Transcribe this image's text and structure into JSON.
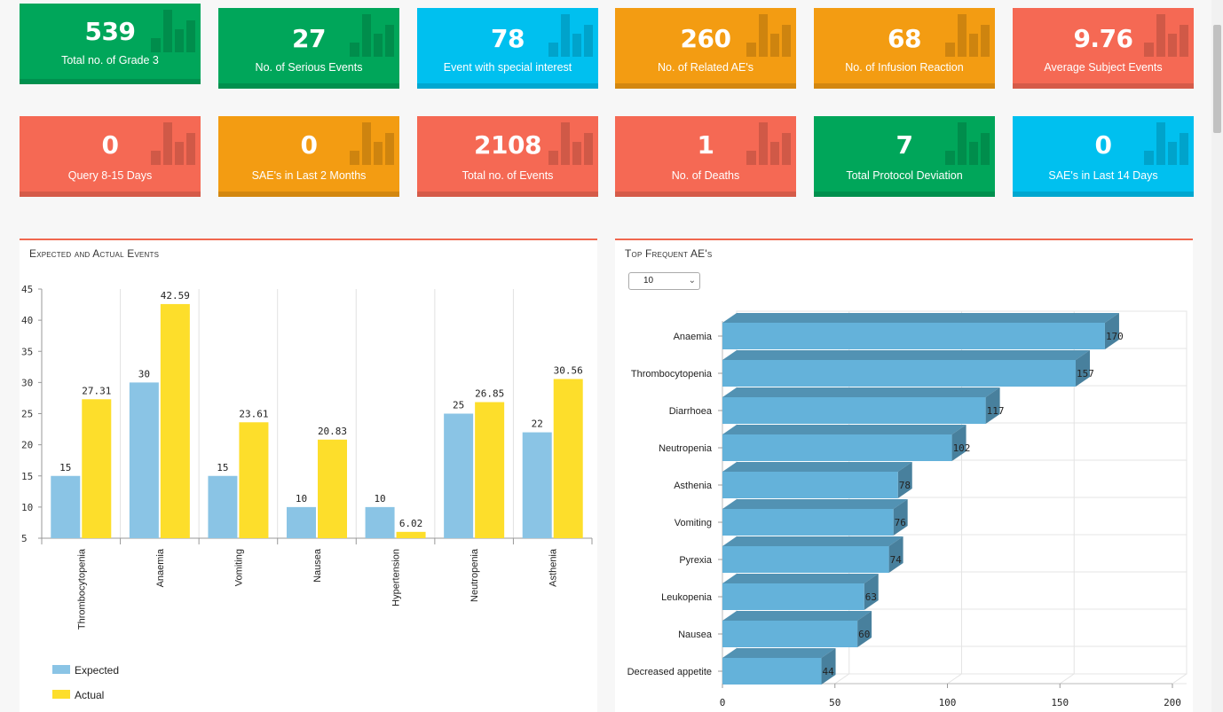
{
  "colors": {
    "green": "#00a65a",
    "blue": "#00c0ef",
    "orange": "#f39c12",
    "red": "#f56954",
    "expected": "#8ac4e5",
    "actual": "#fdde2b",
    "hbar": "#64b2da"
  },
  "tiles_row1": [
    {
      "value": "539",
      "label": "Total no. of Grade 3",
      "color": "green"
    },
    {
      "value": "27",
      "label": "No. of Serious Events",
      "color": "green"
    },
    {
      "value": "78",
      "label": "Event with special interest",
      "color": "blue"
    },
    {
      "value": "260",
      "label": "No. of Related AE's",
      "color": "orange"
    },
    {
      "value": "68",
      "label": "No. of Infusion Reaction",
      "color": "orange"
    },
    {
      "value": "9.76",
      "label": "Average Subject Events",
      "color": "red"
    }
  ],
  "tiles_row2": [
    {
      "value": "0",
      "label": "Query 8-15 Days",
      "color": "red"
    },
    {
      "value": "0",
      "label": "SAE's in Last 2 Months",
      "color": "orange"
    },
    {
      "value": "2108",
      "label": "Total no. of Events",
      "color": "red"
    },
    {
      "value": "1",
      "label": "No. of Deaths",
      "color": "red"
    },
    {
      "value": "7",
      "label": "Total Protocol Deviation",
      "color": "green"
    },
    {
      "value": "0",
      "label": "SAE's in Last 14 Days",
      "color": "blue"
    }
  ],
  "tile_icon": "bar-chart-icon",
  "panel_left": {
    "title": "Expected and Actual Events"
  },
  "panel_right": {
    "title": "Top Frequent AE's",
    "select_value": "10"
  },
  "chart_data": [
    {
      "type": "bar",
      "title": "Expected and Actual Events",
      "categories": [
        "Thrombocytopenia",
        "Anaemia",
        "Vomiting",
        "Nausea",
        "Hypertension",
        "Neutropenia",
        "Asthenia"
      ],
      "series": [
        {
          "name": "Expected",
          "values": [
            15,
            30,
            15,
            10,
            10,
            25,
            22
          ]
        },
        {
          "name": "Actual",
          "values": [
            27.31,
            42.59,
            23.61,
            20.83,
            6.02,
            26.85,
            30.56
          ]
        }
      ],
      "ylim": [
        5,
        45
      ],
      "yticks": [
        5,
        10,
        15,
        20,
        25,
        30,
        35,
        40,
        45
      ],
      "legend": "bottom-left",
      "grid": "vertical"
    },
    {
      "type": "bar",
      "orientation": "horizontal",
      "title": "Top Frequent AE's",
      "categories": [
        "Anaemia",
        "Thrombocytopenia",
        "Diarrhoea",
        "Neutropenia",
        "Asthenia",
        "Vomiting",
        "Pyrexia",
        "Leukopenia",
        "Nausea",
        "Decreased appetite"
      ],
      "values": [
        170,
        157,
        117,
        102,
        78,
        76,
        74,
        63,
        60,
        44
      ],
      "xlim": [
        0,
        200
      ],
      "xticks": [
        0,
        50,
        100,
        150,
        200
      ],
      "grid": true
    }
  ]
}
